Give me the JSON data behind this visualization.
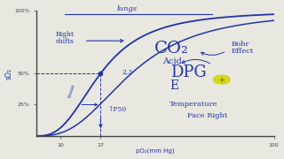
{
  "background_color": "#e8e8e0",
  "curve_color": "#2233aa",
  "text_color": "#2233aa",
  "axis_color": "#444444",
  "fig_width": 3.2,
  "fig_height": 1.8,
  "dpi": 100,
  "xlim": [
    0,
    100
  ],
  "ylim": [
    0,
    100
  ],
  "x_ticks": [
    10,
    27,
    100
  ],
  "x_tick_labels": [
    "10",
    "27",
    "100"
  ],
  "y_ticks": [
    25,
    50,
    100
  ],
  "y_tick_labels": [
    "25%",
    "50%",
    "100%"
  ]
}
